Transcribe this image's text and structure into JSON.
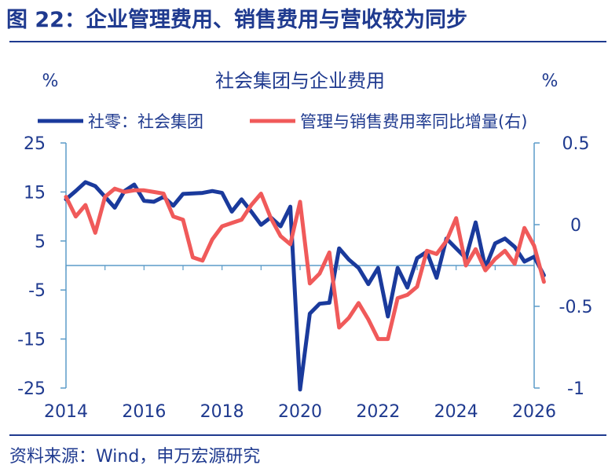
{
  "figure": {
    "title": "图 22：企业管理费用、销售费用与营收较为同步",
    "source": "资料来源：Wind，申万宏源研究"
  },
  "colors": {
    "title": "#1f3a8f",
    "series_left": "#1a3a9c",
    "series_right": "#f05a5a",
    "axis": "#5b9bc8",
    "text": "#1f3a8f"
  },
  "chart_data": {
    "type": "line",
    "title": "社会集团与企业费用",
    "left_axis": {
      "unit": "%",
      "ylim": [
        -25,
        25
      ],
      "ticks": [
        "25",
        "15",
        "5",
        "-5",
        "-15",
        "-25"
      ],
      "tick_values": [
        25,
        15,
        5,
        -5,
        -15,
        -25
      ]
    },
    "right_axis": {
      "unit": "%",
      "ylim": [
        -1,
        0.5
      ],
      "ticks": [
        "0.5",
        "0",
        "-0.5",
        "-1"
      ],
      "tick_values": [
        0.5,
        0,
        -0.5,
        -1
      ]
    },
    "x_axis": {
      "xlim": [
        2014,
        2026
      ],
      "ticks": [
        "2014",
        "2016",
        "2018",
        "2020",
        "2022",
        "2024",
        "2026"
      ],
      "tick_values": [
        2014,
        2016,
        2018,
        2020,
        2022,
        2024,
        2026
      ]
    },
    "zero_line_y": 0,
    "legend_placement": "top",
    "grid": false,
    "series": [
      {
        "name": "社零：社会集团",
        "axis": "left",
        "color": "#1a3a9c",
        "points": [
          [
            2014.0,
            13.5
          ],
          [
            2014.25,
            15.2
          ],
          [
            2014.5,
            17.0
          ],
          [
            2014.75,
            16.2
          ],
          [
            2015.0,
            14.0
          ],
          [
            2015.25,
            11.8
          ],
          [
            2015.5,
            15.2
          ],
          [
            2015.75,
            16.5
          ],
          [
            2016.0,
            13.2
          ],
          [
            2016.25,
            13.0
          ],
          [
            2016.5,
            14.0
          ],
          [
            2016.75,
            12.2
          ],
          [
            2017.0,
            14.6
          ],
          [
            2017.25,
            14.7
          ],
          [
            2017.5,
            14.8
          ],
          [
            2017.75,
            15.2
          ],
          [
            2018.0,
            14.8
          ],
          [
            2018.25,
            11.0
          ],
          [
            2018.5,
            13.5
          ],
          [
            2018.75,
            11.0
          ],
          [
            2019.0,
            8.3
          ],
          [
            2019.25,
            9.8
          ],
          [
            2019.5,
            8.0
          ],
          [
            2019.75,
            12.0
          ],
          [
            2020.0,
            -25.3
          ],
          [
            2020.25,
            -9.8
          ],
          [
            2020.5,
            -7.8
          ],
          [
            2020.75,
            -7.6
          ],
          [
            2021.0,
            3.5
          ],
          [
            2021.25,
            1.2
          ],
          [
            2021.5,
            -0.5
          ],
          [
            2021.75,
            -3.8
          ],
          [
            2022.0,
            -0.5
          ],
          [
            2022.25,
            -10.4
          ],
          [
            2022.5,
            -0.5
          ],
          [
            2022.75,
            -4.5
          ],
          [
            2023.0,
            1.5
          ],
          [
            2023.25,
            2.8
          ],
          [
            2023.5,
            -2.5
          ],
          [
            2023.75,
            5.5
          ],
          [
            2024.0,
            3.5
          ],
          [
            2024.25,
            1.5
          ],
          [
            2024.5,
            8.8
          ],
          [
            2024.75,
            -0.5
          ],
          [
            2025.0,
            4.5
          ],
          [
            2025.25,
            5.5
          ],
          [
            2025.5,
            3.8
          ],
          [
            2025.75,
            0.8
          ],
          [
            2026.0,
            1.8
          ],
          [
            2026.25,
            -2.0
          ]
        ]
      },
      {
        "name": "管理与销售费用率同比增量(右)",
        "axis": "right",
        "color": "#f05a5a",
        "points": [
          [
            2014.0,
            0.17
          ],
          [
            2014.25,
            0.05
          ],
          [
            2014.5,
            0.12
          ],
          [
            2014.75,
            -0.05
          ],
          [
            2015.0,
            0.17
          ],
          [
            2015.25,
            0.22
          ],
          [
            2015.5,
            0.2
          ],
          [
            2015.75,
            0.21
          ],
          [
            2016.0,
            0.21
          ],
          [
            2016.25,
            0.2
          ],
          [
            2016.5,
            0.19
          ],
          [
            2016.75,
            0.05
          ],
          [
            2017.0,
            0.03
          ],
          [
            2017.25,
            -0.2
          ],
          [
            2017.5,
            -0.22
          ],
          [
            2017.75,
            -0.09
          ],
          [
            2018.0,
            -0.01
          ],
          [
            2018.25,
            0.01
          ],
          [
            2018.5,
            0.03
          ],
          [
            2018.75,
            0.12
          ],
          [
            2019.0,
            0.19
          ],
          [
            2019.25,
            0.04
          ],
          [
            2019.5,
            -0.07
          ],
          [
            2019.75,
            -0.12
          ],
          [
            2020.0,
            0.14
          ],
          [
            2020.25,
            -0.36
          ],
          [
            2020.5,
            -0.3
          ],
          [
            2020.75,
            -0.17
          ],
          [
            2021.0,
            -0.63
          ],
          [
            2021.25,
            -0.57
          ],
          [
            2021.5,
            -0.48
          ],
          [
            2021.75,
            -0.58
          ],
          [
            2022.0,
            -0.7
          ],
          [
            2022.25,
            -0.7
          ],
          [
            2022.5,
            -0.45
          ],
          [
            2022.75,
            -0.43
          ],
          [
            2023.0,
            -0.38
          ],
          [
            2023.25,
            -0.16
          ],
          [
            2023.5,
            -0.18
          ],
          [
            2023.75,
            -0.1
          ],
          [
            2024.0,
            0.04
          ],
          [
            2024.25,
            -0.25
          ],
          [
            2024.5,
            -0.15
          ],
          [
            2024.75,
            -0.28
          ],
          [
            2025.0,
            -0.21
          ],
          [
            2025.25,
            -0.16
          ],
          [
            2025.5,
            -0.24
          ],
          [
            2025.75,
            -0.02
          ],
          [
            2026.0,
            -0.13
          ],
          [
            2026.25,
            -0.35
          ]
        ]
      }
    ]
  }
}
